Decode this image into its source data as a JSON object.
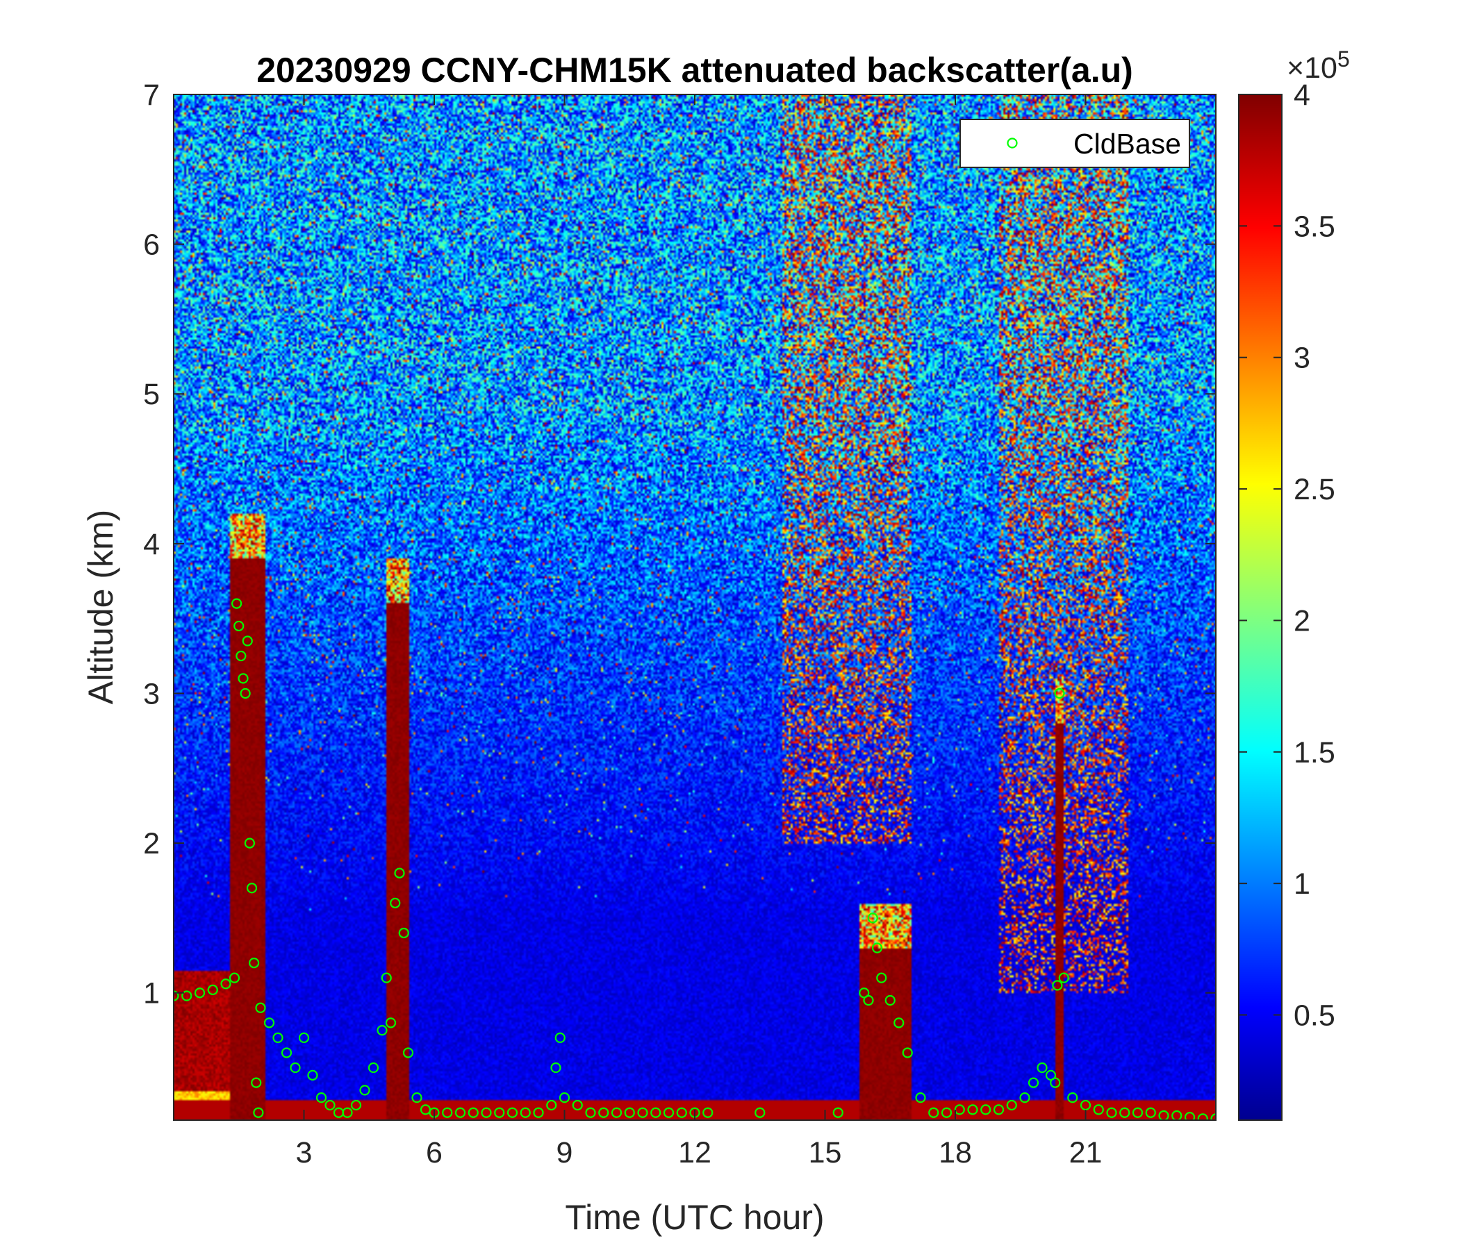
{
  "chart_data": {
    "type": "heatmap",
    "title": "20230929 CCNY-CHM15K attenuated backscatter(a.u)",
    "xlabel": "Time (UTC hour)",
    "ylabel": "Altitude (km)",
    "xlim": [
      0,
      24
    ],
    "ylim": [
      0.15,
      7
    ],
    "xticks": [
      3,
      6,
      9,
      12,
      15,
      18,
      21
    ],
    "xtick_labels": [
      "3",
      "6",
      "9",
      "12",
      "15",
      "18",
      "21"
    ],
    "yticks": [
      1,
      2,
      3,
      4,
      5,
      6,
      7
    ],
    "ytick_labels": [
      "1",
      "2",
      "3",
      "4",
      "5",
      "6",
      "7"
    ],
    "colorbar": {
      "colormap": "jet",
      "clim": [
        0.1,
        4
      ],
      "ticks": [
        0.5,
        1,
        1.5,
        2,
        2.5,
        3,
        3.5,
        4
      ],
      "tick_labels": [
        "0.5",
        "1",
        "1.5",
        "2",
        "2.5",
        "3",
        "3.5",
        "4"
      ],
      "exponent_label": "×10",
      "exponent_power": "5"
    },
    "legend": {
      "placement": "top-right",
      "entries": [
        {
          "name": "CldBase",
          "marker": "circle",
          "color": "#00ff00"
        }
      ]
    },
    "features": [
      {
        "kind": "cloud",
        "t0": 1.3,
        "t1": 2.1,
        "base_km": 0.15,
        "top_km": 4.2
      },
      {
        "kind": "cloud",
        "t0": 4.9,
        "t1": 5.4,
        "base_km": 0.15,
        "top_km": 3.9
      },
      {
        "kind": "cloud",
        "t0": 15.8,
        "t1": 17.0,
        "base_km": 0.15,
        "top_km": 1.6
      },
      {
        "kind": "cloud",
        "t0": 20.3,
        "t1": 20.5,
        "base_km": 0.15,
        "top_km": 3.1
      },
      {
        "kind": "boundary_layer",
        "t0": 0.0,
        "t1": 1.4,
        "top_km": 1.15
      },
      {
        "kind": "noisy_region",
        "t0": 14.0,
        "t1": 17.0,
        "bottom_km": 2.0,
        "top_km": 7.0
      },
      {
        "kind": "noisy_region",
        "t0": 19.0,
        "t1": 22.0,
        "bottom_km": 1.0,
        "top_km": 7.0
      }
    ],
    "cloud_base": {
      "name": "CldBase",
      "x": [
        0.0,
        0.3,
        0.6,
        0.9,
        1.2,
        1.4,
        1.45,
        1.5,
        1.55,
        1.6,
        1.65,
        1.7,
        1.75,
        1.8,
        1.85,
        1.9,
        1.95,
        2.0,
        2.2,
        2.4,
        2.6,
        2.8,
        3.0,
        3.2,
        3.4,
        3.6,
        3.8,
        4.0,
        4.2,
        4.4,
        4.6,
        4.8,
        4.9,
        5.0,
        5.1,
        5.2,
        5.3,
        5.4,
        5.6,
        5.8,
        6.0,
        6.3,
        6.6,
        6.9,
        7.2,
        7.5,
        7.8,
        8.1,
        8.4,
        8.7,
        8.8,
        8.9,
        9.0,
        9.3,
        9.6,
        9.9,
        10.2,
        10.5,
        10.8,
        11.1,
        11.4,
        11.7,
        12.0,
        12.3,
        13.5,
        15.3,
        15.9,
        16.0,
        16.1,
        16.2,
        16.3,
        16.5,
        16.7,
        16.9,
        17.2,
        17.5,
        17.8,
        18.1,
        18.4,
        18.7,
        19.0,
        19.3,
        19.6,
        19.8,
        20.0,
        20.2,
        20.3,
        20.35,
        20.4,
        20.5,
        20.7,
        21.0,
        21.3,
        21.6,
        21.9,
        22.2,
        22.5,
        22.8,
        23.1,
        23.4,
        23.7,
        24.0
      ],
      "y": [
        0.98,
        0.98,
        1.0,
        1.02,
        1.06,
        1.1,
        3.6,
        3.45,
        3.25,
        3.1,
        3.0,
        3.35,
        2.0,
        1.7,
        1.2,
        0.4,
        0.2,
        0.9,
        0.8,
        0.7,
        0.6,
        0.5,
        0.7,
        0.45,
        0.3,
        0.25,
        0.2,
        0.2,
        0.25,
        0.35,
        0.5,
        0.75,
        1.1,
        0.8,
        1.6,
        1.8,
        1.4,
        0.6,
        0.3,
        0.22,
        0.2,
        0.2,
        0.2,
        0.2,
        0.2,
        0.2,
        0.2,
        0.2,
        0.2,
        0.25,
        0.5,
        0.7,
        0.3,
        0.25,
        0.2,
        0.2,
        0.2,
        0.2,
        0.2,
        0.2,
        0.2,
        0.2,
        0.2,
        0.2,
        0.2,
        0.2,
        1.0,
        0.95,
        1.5,
        1.3,
        1.1,
        0.95,
        0.8,
        0.6,
        0.3,
        0.2,
        0.2,
        0.22,
        0.22,
        0.22,
        0.22,
        0.25,
        0.3,
        0.4,
        0.5,
        0.45,
        0.4,
        1.05,
        3.0,
        1.1,
        0.3,
        0.25,
        0.22,
        0.2,
        0.2,
        0.2,
        0.2,
        0.18,
        0.18,
        0.17,
        0.16,
        0.16
      ]
    }
  }
}
